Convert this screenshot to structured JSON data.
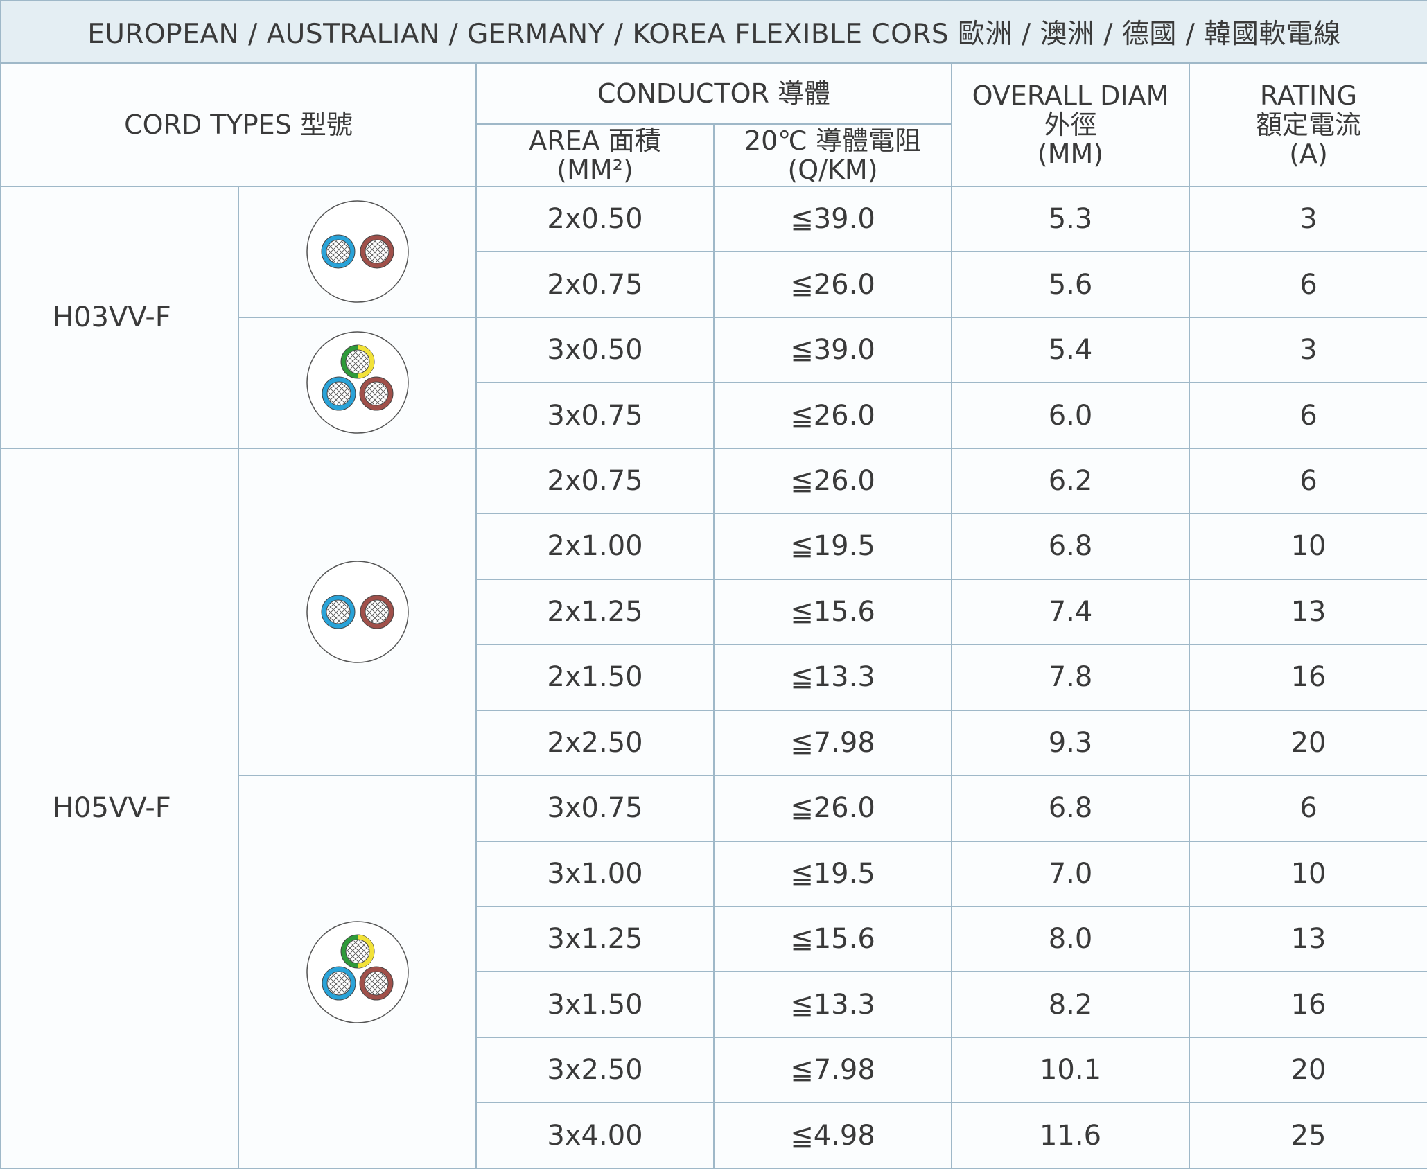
{
  "title": "EUROPEAN / AUSTRALIAN / GERMANY / KOREA FLEXIBLE CORS 歐洲 / 澳洲 / 德國 / 韓國軟電線",
  "headers": {
    "cord_types": "CORD TYPES 型號",
    "conductor": "CONDUCTOR 導體",
    "area_line1": "AREA 面積",
    "area_line2": "(MM²)",
    "resistance_line1": "20℃ 導體電阻",
    "resistance_line2": "(Q/KM)",
    "diam_line1": "OVERALL DIAM",
    "diam_line2": "外徑",
    "diam_line3": "(MM)",
    "rating_line1": "RATING",
    "rating_line2": "額定電流",
    "rating_line3": "(A)"
  },
  "groups": [
    {
      "type": "H03VV-F",
      "subgroups": [
        {
          "icon": "two-core-cable-icon",
          "rows": [
            {
              "area": "2x0.50",
              "resistance": "≦39.0",
              "diam": "5.3",
              "rating": "3"
            },
            {
              "area": "2x0.75",
              "resistance": "≦26.0",
              "diam": "5.6",
              "rating": "6"
            }
          ]
        },
        {
          "icon": "three-core-cable-icon",
          "rows": [
            {
              "area": "3x0.50",
              "resistance": "≦39.0",
              "diam": "5.4",
              "rating": "3"
            },
            {
              "area": "3x0.75",
              "resistance": "≦26.0",
              "diam": "6.0",
              "rating": "6"
            }
          ]
        }
      ]
    },
    {
      "type": "H05VV-F",
      "subgroups": [
        {
          "icon": "two-core-cable-icon",
          "rows": [
            {
              "area": "2x0.75",
              "resistance": "≦26.0",
              "diam": "6.2",
              "rating": "6"
            },
            {
              "area": "2x1.00",
              "resistance": "≦19.5",
              "diam": "6.8",
              "rating": "10"
            },
            {
              "area": "2x1.25",
              "resistance": "≦15.6",
              "diam": "7.4",
              "rating": "13"
            },
            {
              "area": "2x1.50",
              "resistance": "≦13.3",
              "diam": "7.8",
              "rating": "16"
            },
            {
              "area": "2x2.50",
              "resistance": "≦7.98",
              "diam": "9.3",
              "rating": "20"
            }
          ]
        },
        {
          "icon": "three-core-cable-icon",
          "rows": [
            {
              "area": "3x0.75",
              "resistance": "≦26.0",
              "diam": "6.8",
              "rating": "6"
            },
            {
              "area": "3x1.00",
              "resistance": "≦19.5",
              "diam": "7.0",
              "rating": "10"
            },
            {
              "area": "3x1.25",
              "resistance": "≦15.6",
              "diam": "8.0",
              "rating": "13"
            },
            {
              "area": "3x1.50",
              "resistance": "≦13.3",
              "diam": "8.2",
              "rating": "16"
            },
            {
              "area": "3x2.50",
              "resistance": "≦7.98",
              "diam": "10.1",
              "rating": "20"
            },
            {
              "area": "3x4.00",
              "resistance": "≦4.98",
              "diam": "11.6",
              "rating": "25"
            }
          ]
        }
      ]
    }
  ],
  "colors": {
    "border": "#9fb8c8",
    "title_bg": "#e4eef3",
    "wire_blue": "#2aa3d8",
    "wire_brown": "#a0504a",
    "wire_green": "#2f9a3a",
    "wire_yellow": "#f2e23a"
  }
}
